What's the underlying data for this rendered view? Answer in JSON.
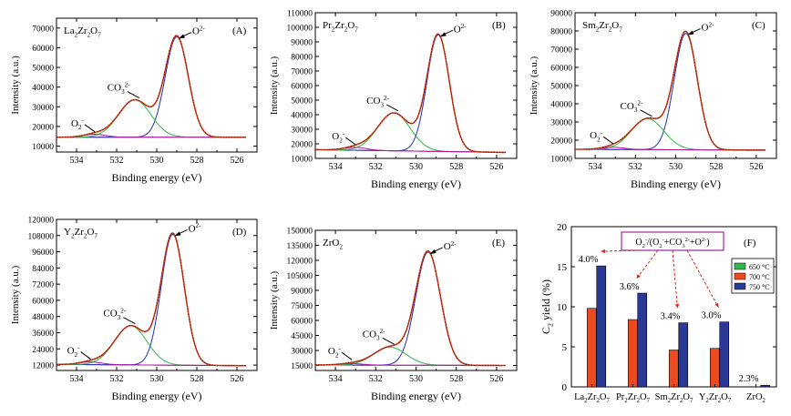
{
  "figure": {
    "panels": [
      {
        "id": "A",
        "compound_display": "La2Zr2O7",
        "panel_label": "(A)",
        "xlabel": "Binding energy (eV)",
        "ylabel": "Intensity (a.u.)"
      },
      {
        "id": "B",
        "compound_display": "Pr2Zr2O7",
        "panel_label": "(B)",
        "xlabel": "Binding energy (eV)",
        "ylabel": "Intensity (a.u.)"
      },
      {
        "id": "C",
        "compound_display": "Sm2Zr2O7",
        "panel_label": "(C)",
        "xlabel": "Binding energy (eV)",
        "ylabel": "Intensity (a.u.)"
      },
      {
        "id": "D",
        "compound_display": "Y2Zr2O7",
        "panel_label": "(D)",
        "xlabel": "Binding energy (eV)",
        "ylabel": "Intensity (a.u.)"
      },
      {
        "id": "E",
        "compound_display": "ZrO2",
        "panel_label": "(E)",
        "xlabel": "Binding energy (eV)",
        "ylabel": "Intensity (a.u.)"
      },
      {
        "id": "F",
        "panel_label": "(F)",
        "ylabel": "C2 yield (%)",
        "formula_box": "O2−/(O2−+CO32−+O2−)"
      }
    ]
  },
  "chart_data": [
    {
      "type": "line",
      "panel": "A",
      "title": "La2Zr2O7",
      "xlabel": "Binding energy (eV)",
      "ylabel": "Intensity (a.u.)",
      "xlim": [
        535,
        525
      ],
      "ylim": [
        7000,
        75000
      ],
      "xticks": [
        534,
        532,
        530,
        528,
        526
      ],
      "yticks": [
        10000,
        20000,
        30000,
        40000,
        50000,
        60000,
        70000
      ],
      "baseline": {
        "start": 14500,
        "end": 14500
      },
      "components": [
        {
          "label": "O2-",
          "center": 529.0,
          "height": 51000,
          "fwhm": 1.35,
          "color": "#1e2fb8"
        },
        {
          "label": "CO32-",
          "center": 531.1,
          "height": 19000,
          "fwhm": 1.9,
          "color": "#2db84a"
        },
        {
          "label": "O2-",
          "center": 533.1,
          "height": 1500,
          "fwhm": 1.3,
          "color": "#b0169c"
        }
      ],
      "annotations": [
        "O2-",
        "CO32-",
        "O2-"
      ]
    },
    {
      "type": "line",
      "panel": "B",
      "title": "Pr2Zr2O7",
      "xlabel": "Binding energy (eV)",
      "ylabel": "Intensity (a.u.)",
      "xlim": [
        535,
        525
      ],
      "ylim": [
        10000,
        110000
      ],
      "xticks": [
        534,
        532,
        530,
        528,
        526
      ],
      "yticks": [
        10000,
        20000,
        30000,
        40000,
        50000,
        60000,
        70000,
        80000,
        90000,
        100000,
        110000
      ],
      "baseline": {
        "start": 16000,
        "end": 14000
      },
      "components": [
        {
          "label": "O2-",
          "center": 528.9,
          "height": 80000,
          "fwhm": 1.3,
          "color": "#1e2fb8"
        },
        {
          "label": "CO32-",
          "center": 531.1,
          "height": 26000,
          "fwhm": 1.9,
          "color": "#2db84a"
        },
        {
          "label": "O2-",
          "center": 533.0,
          "height": 2000,
          "fwhm": 1.3,
          "color": "#b0169c"
        }
      ],
      "annotations": [
        "O2-",
        "CO32-",
        "O2-"
      ]
    },
    {
      "type": "line",
      "panel": "C",
      "title": "Sm2Zr2O7",
      "xlabel": "Binding energy (eV)",
      "ylabel": "Intensity (a.u.)",
      "xlim": [
        535,
        525
      ],
      "ylim": [
        10000,
        90000
      ],
      "xticks": [
        534,
        532,
        530,
        528,
        526
      ],
      "yticks": [
        10000,
        20000,
        30000,
        40000,
        50000,
        60000,
        70000,
        80000,
        90000
      ],
      "baseline": {
        "start": 15000,
        "end": 14500
      },
      "components": [
        {
          "label": "O2-",
          "center": 529.5,
          "height": 64000,
          "fwhm": 1.35,
          "color": "#1e2fb8"
        },
        {
          "label": "CO32-",
          "center": 531.4,
          "height": 17000,
          "fwhm": 1.9,
          "color": "#2db84a"
        },
        {
          "label": "O2-",
          "center": 533.1,
          "height": 1200,
          "fwhm": 1.3,
          "color": "#b0169c"
        }
      ],
      "annotations": [
        "O2-",
        "CO32-",
        "O2-"
      ]
    },
    {
      "type": "line",
      "panel": "D",
      "title": "Y2Zr2O7",
      "xlabel": "Binding energy (eV)",
      "ylabel": "Intensity (a.u.)",
      "xlim": [
        535,
        525
      ],
      "ylim": [
        8000,
        120000
      ],
      "xticks": [
        534,
        532,
        530,
        528,
        526
      ],
      "yticks": [
        12000,
        24000,
        36000,
        48000,
        60000,
        72000,
        84000,
        96000,
        108000,
        120000
      ],
      "baseline": {
        "start": 12500,
        "end": 11500
      },
      "components": [
        {
          "label": "O2-",
          "center": 529.2,
          "height": 97000,
          "fwhm": 1.35,
          "color": "#1e2fb8"
        },
        {
          "label": "CO32-",
          "center": 531.3,
          "height": 29000,
          "fwhm": 1.9,
          "color": "#2db84a"
        },
        {
          "label": "O2-",
          "center": 533.3,
          "height": 2000,
          "fwhm": 1.3,
          "color": "#b0169c"
        }
      ],
      "annotations": [
        "O2-",
        "CO32-",
        "O2-"
      ]
    },
    {
      "type": "line",
      "panel": "E",
      "title": "ZrO2",
      "xlabel": "Binding energy (eV)",
      "ylabel": "Intensity (a.u.)",
      "xlim": [
        535,
        525
      ],
      "ylim": [
        10000,
        150000
      ],
      "xticks": [
        534,
        532,
        530,
        528,
        526
      ],
      "yticks": [
        15000,
        30000,
        45000,
        60000,
        75000,
        90000,
        105000,
        120000,
        135000,
        150000
      ],
      "baseline": {
        "start": 15500,
        "end": 15000
      },
      "components": [
        {
          "label": "O2-",
          "center": 529.4,
          "height": 113000,
          "fwhm": 1.45,
          "color": "#1e2fb8"
        },
        {
          "label": "CO32-",
          "center": 531.3,
          "height": 18000,
          "fwhm": 1.9,
          "color": "#2db84a"
        },
        {
          "label": "O2-",
          "center": 533.2,
          "height": 1500,
          "fwhm": 1.3,
          "color": "#b0169c"
        }
      ],
      "annotations": [
        "O2-",
        "CO32-",
        "O2-"
      ]
    },
    {
      "type": "bar",
      "panel": "F",
      "ylabel": "C2 yield (%)",
      "ylim": [
        0,
        20
      ],
      "yticks": [
        0,
        5,
        10,
        15,
        20
      ],
      "categories": [
        "La2Zr2O7",
        "Pr2Zr2O7",
        "Sm2Zr2O7",
        "Y2Zr2O7",
        "ZrO2"
      ],
      "series": [
        {
          "name": "650 °C",
          "color": "#2db84a",
          "values": [
            0,
            0,
            0,
            0,
            0
          ]
        },
        {
          "name": "700 °C",
          "color": "#ee4a1f",
          "values": [
            9.8,
            8.4,
            4.6,
            4.8,
            0
          ]
        },
        {
          "name": "750 °C",
          "color": "#2a3896",
          "values": [
            15.1,
            11.7,
            8.0,
            8.1,
            0.2
          ]
        }
      ],
      "ratio_labels": [
        "4.0%",
        "3.6%",
        "3.4%",
        "3.0%",
        "2.3%"
      ],
      "legend": {
        "location": "upper right",
        "entries": [
          "650 °C",
          "700 °C",
          "750 °C"
        ]
      },
      "formula_box": "O2−/(O2−+CO32−+O2−)"
    }
  ]
}
